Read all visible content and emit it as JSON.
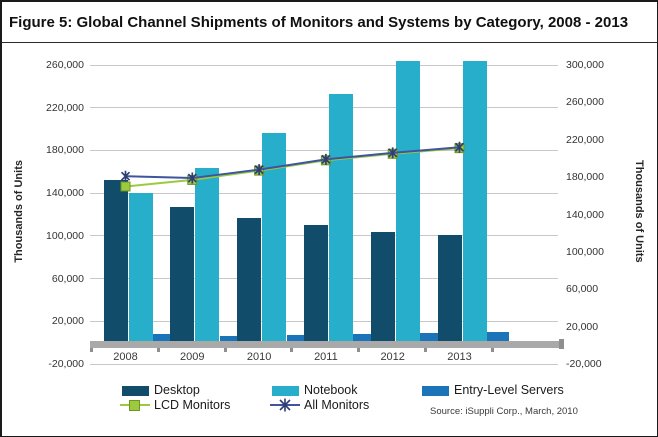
{
  "figure": {
    "title": "Figure 5: Global Channel Shipments of Monitors and Systems by Category, 2008 - 2013",
    "source": "Source: iSuppli Corp., March, 2010"
  },
  "chart_data": {
    "type": "bar",
    "subtype": "clustered bars with overlaid lines, dual y-axis",
    "categories": [
      "2008",
      "2009",
      "2010",
      "2011",
      "2012",
      "2013"
    ],
    "series": [
      {
        "name": "Desktop",
        "type": "bar",
        "axis": "left",
        "color": "#114c6b",
        "values": [
          152000,
          127000,
          117000,
          110000,
          104000,
          101000
        ]
      },
      {
        "name": "Notebook",
        "type": "bar",
        "axis": "left",
        "color": "#27aecb",
        "values": [
          140000,
          164000,
          196000,
          233000,
          264000,
          264000
        ]
      },
      {
        "name": "Entry-Level Servers",
        "type": "bar",
        "axis": "left",
        "color": "#1b74b8",
        "values": [
          8000,
          6000,
          7000,
          8000,
          9000,
          10000
        ]
      },
      {
        "name": "LCD Monitors",
        "type": "line",
        "axis": "right",
        "color": "#9bca3d",
        "marker": "square",
        "values": [
          170000,
          177000,
          187000,
          198000,
          205000,
          211000
        ]
      },
      {
        "name": "All Monitors",
        "type": "line",
        "axis": "right",
        "color": "#3e549f",
        "marker": "x-star",
        "values": [
          181000,
          179000,
          188000,
          199000,
          206000,
          212000
        ]
      }
    ],
    "left_axis": {
      "title": "Thousands of Units",
      "min": -20000,
      "max": 260000,
      "step": 40000,
      "tick_labels": [
        "260,000",
        "220,000",
        "180,000",
        "140,000",
        "100,000",
        "60,000",
        "20,000",
        "-20,000"
      ]
    },
    "right_axis": {
      "title": "Thousands of Units",
      "min": -20000,
      "max": 300000,
      "step": 40000,
      "tick_labels": [
        "300,000",
        "260,000",
        "220,000",
        "180,000",
        "140,000",
        "100,000",
        "60,000",
        "20,000",
        "-20,000"
      ]
    },
    "grid": true,
    "legend_position": "bottom"
  }
}
